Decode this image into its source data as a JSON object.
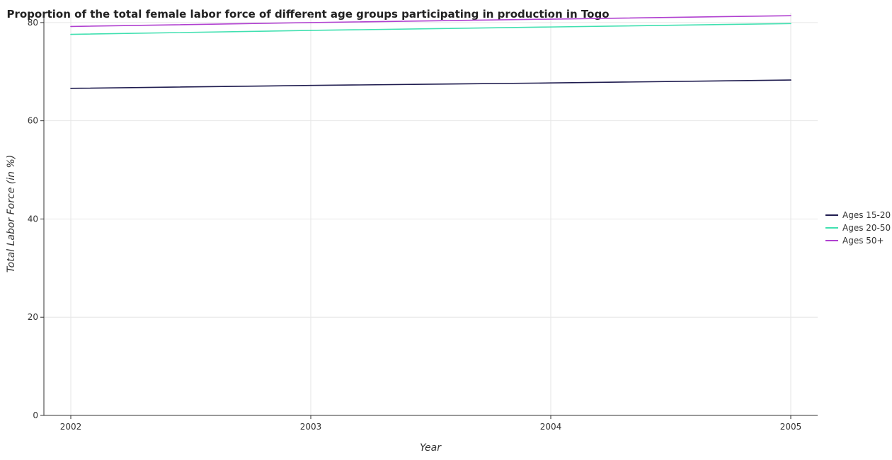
{
  "chart_data": {
    "type": "line",
    "title": "Proportion of the total female labor force of different age groups participating in production in Togo",
    "xlabel": "Year",
    "ylabel": "Total Labor Force (in %)",
    "x": [
      "2002",
      "2003",
      "2004",
      "2005"
    ],
    "yticks": [
      "0",
      "20",
      "40",
      "60",
      "80"
    ],
    "ylim": [
      0,
      82
    ],
    "grid": true,
    "legend_position": "right",
    "series": [
      {
        "name": "Ages 15-20",
        "color": "#1f1c4f",
        "values": [
          66.6,
          67.2,
          67.7,
          68.3
        ]
      },
      {
        "name": "Ages 20-50",
        "color": "#40e0b0",
        "values": [
          77.6,
          78.4,
          79.1,
          79.8
        ]
      },
      {
        "name": "Ages 50+",
        "color": "#b040d0",
        "values": [
          79.2,
          80.0,
          80.7,
          81.4
        ]
      }
    ]
  }
}
